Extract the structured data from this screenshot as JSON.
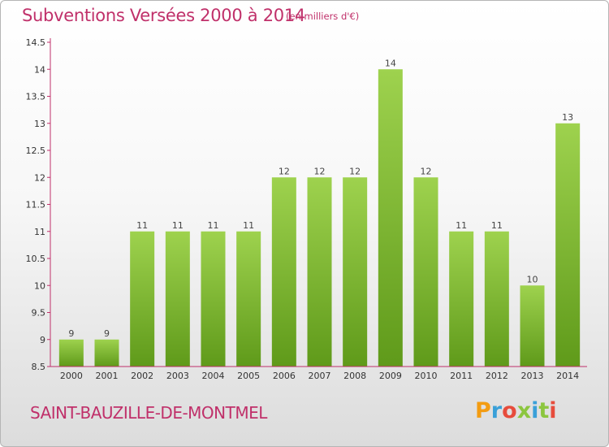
{
  "header": {
    "title": "Subventions Versées 2000 à 2014",
    "unit_note": "(en milliers d'€)"
  },
  "footer": {
    "commune": "SAINT-BAUZILLE-DE-MONTMEL",
    "logo_text": "Proxiti",
    "logo_colors": [
      "#f39c12",
      "#3aa0d8",
      "#e74c3c",
      "#8cc63f",
      "#3aa0d8",
      "#8cc63f",
      "#e74c3c"
    ]
  },
  "chart_data": {
    "type": "bar",
    "title": "Subventions Versées 2000 à 2014",
    "subtitle": "(en milliers d'€)",
    "xlabel": "",
    "ylabel": "",
    "categories": [
      "2000",
      "2001",
      "2002",
      "2003",
      "2004",
      "2005",
      "2006",
      "2007",
      "2008",
      "2009",
      "2010",
      "2011",
      "2012",
      "2013",
      "2014"
    ],
    "values": [
      9,
      9,
      11,
      11,
      11,
      11,
      12,
      12,
      12,
      14,
      12,
      11,
      11,
      10,
      13
    ],
    "data_labels": [
      "9",
      "9",
      "11",
      "11",
      "11",
      "11",
      "12",
      "12",
      "12",
      "14",
      "12",
      "11",
      "11",
      "10",
      "13"
    ],
    "ylim": [
      8.5,
      14.5
    ],
    "yticks": [
      8.5,
      9,
      9.5,
      10,
      10.5,
      11,
      11.5,
      12,
      12.5,
      13,
      13.5,
      14,
      14.5
    ],
    "ytick_labels": [
      "8.5",
      "9",
      "9.5",
      "10",
      "10.5",
      "11",
      "11.5",
      "12",
      "12.5",
      "13",
      "13.5",
      "14",
      "14.5"
    ],
    "grid": false,
    "legend": "none",
    "bar_color_top": "#9ed24e",
    "bar_color_bottom": "#5f9a1a",
    "axis_color": "#c0306a"
  }
}
